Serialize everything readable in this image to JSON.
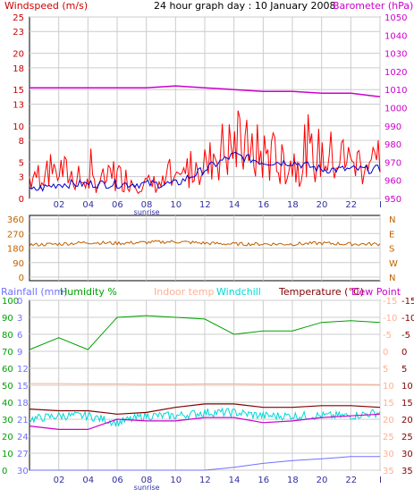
{
  "header": {
    "left_label": "Windspeed (m/s)",
    "center_label": "24 hour graph day : 10 January 2008",
    "right_label": "Barometer (hPa)"
  },
  "colors": {
    "windspeed": "#cc0000",
    "windspeed_accent": "#ff0000",
    "avg_wind": "#0000cc",
    "barometer": "#cc00cc",
    "direction": "#c06000",
    "rain": "#7070ff",
    "humidity": "#00a000",
    "indoor": "#ffb090",
    "windchill": "#00d8d8",
    "temperature": "#800000",
    "dewpoint": "#cc00cc",
    "grid": "#cccccc",
    "tick_blue": "#3030a0"
  },
  "time_labels": [
    "02",
    "04",
    "06",
    "08",
    "10",
    "12",
    "14",
    "16",
    "18",
    "20",
    "22"
  ],
  "sunrise_label": "sunrise",
  "chart_data": [
    {
      "type": "line",
      "title": "24 hour graph day : 10 January 2008",
      "left_axis": {
        "label": "Windspeed (m/s)",
        "ticks": [
          0,
          3,
          5,
          8,
          10,
          13,
          15,
          18,
          20,
          23,
          25
        ],
        "ylim": [
          0,
          25
        ]
      },
      "right_axis": {
        "label": "Barometer (hPa)",
        "ticks": [
          950,
          960,
          970,
          980,
          990,
          1000,
          1010,
          1020,
          1030,
          1040,
          1050
        ],
        "ylim": [
          950,
          1050
        ]
      },
      "x": [
        0,
        2,
        4,
        6,
        8,
        10,
        12,
        14,
        16,
        18,
        20,
        22,
        24
      ],
      "series": [
        {
          "axis": "right",
          "values": [
            1011,
            1011,
            1011,
            1011,
            1011,
            1012,
            1011,
            1010,
            1009,
            1009,
            1008,
            1008,
            1006
          ]
        },
        {
          "axis": "left",
          "values": [
            1,
            2,
            2,
            2,
            2,
            2,
            4,
            6,
            5,
            5,
            4,
            4,
            4
          ]
        },
        {
          "axis": "left",
          "values": [
            3,
            4,
            2,
            3,
            2,
            2,
            6,
            7,
            6,
            5,
            6,
            5,
            5
          ]
        }
      ]
    },
    {
      "type": "line",
      "left_axis": {
        "ticks": [
          0,
          90,
          180,
          270,
          360
        ],
        "ylim": [
          0,
          360
        ]
      },
      "right_axis": {
        "ticks": [
          "N",
          "W",
          "S",
          "E",
          "N"
        ]
      },
      "x": [
        0,
        2,
        4,
        6,
        8,
        10,
        12,
        14,
        16,
        18,
        20,
        22,
        24
      ],
      "series": [
        {
          "values": [
            200,
            205,
            215,
            210,
            215,
            220,
            210,
            205,
            205,
            205,
            210,
            205,
            205
          ]
        }
      ]
    },
    {
      "type": "line",
      "legend": [
        "Rainfall (mm)",
        "Humidity %",
        "Indoor temp",
        "Windchill",
        "Temperature (°C)",
        "Dew Point"
      ],
      "axis_rain": {
        "label": "Rainfall (mm)",
        "ticks": [
          0,
          3,
          6,
          9,
          12,
          15,
          18,
          21,
          24,
          27,
          30
        ],
        "ylim": [
          0,
          30
        ]
      },
      "axis_humidity": {
        "label": "Humidity %",
        "ticks": [
          0,
          10,
          20,
          30,
          40,
          50,
          60,
          70,
          80,
          90,
          100
        ],
        "ylim": [
          0,
          100
        ]
      },
      "axis_temp_right": {
        "label": "Temperature (°C)",
        "ticks": [
          35,
          30,
          25,
          20,
          15,
          10,
          5,
          0,
          -5,
          -10,
          -15
        ],
        "ylim": [
          -15,
          35
        ]
      },
      "x": [
        0,
        2,
        4,
        6,
        8,
        10,
        12,
        14,
        16,
        18,
        20,
        22,
        24
      ],
      "series": [
        {
          "name": "Humidity %",
          "values": [
            71,
            78,
            71,
            90,
            91,
            90,
            89,
            80,
            82,
            82,
            87,
            88,
            87
          ]
        },
        {
          "name": "Rainfall (mm)",
          "values": [
            0,
            0,
            0,
            0,
            0,
            0,
            0,
            0.5,
            1.2,
            1.7,
            2.0,
            2.4,
            2.4
          ]
        },
        {
          "name": "Indoor temp",
          "values": [
            10.5,
            10.5,
            10.4,
            10.4,
            10.3,
            10.3,
            10.4,
            10.4,
            10.3,
            10.3,
            10.3,
            10.3,
            10.2
          ]
        },
        {
          "name": "Temperature (°C)",
          "values": [
            3,
            2.5,
            2.5,
            1.5,
            2,
            3.5,
            4.5,
            4.5,
            3.5,
            3.5,
            4,
            4,
            3.5
          ]
        },
        {
          "name": "Windchill",
          "values": [
            0,
            1,
            1,
            -1,
            1,
            1,
            2,
            2,
            1,
            1,
            1,
            1,
            2
          ]
        },
        {
          "name": "Dew Point",
          "values": [
            -2,
            -3,
            -3,
            0,
            -0.5,
            -0.5,
            0.5,
            0.5,
            -1,
            -0.5,
            0.5,
            1,
            1.5
          ]
        }
      ]
    }
  ]
}
